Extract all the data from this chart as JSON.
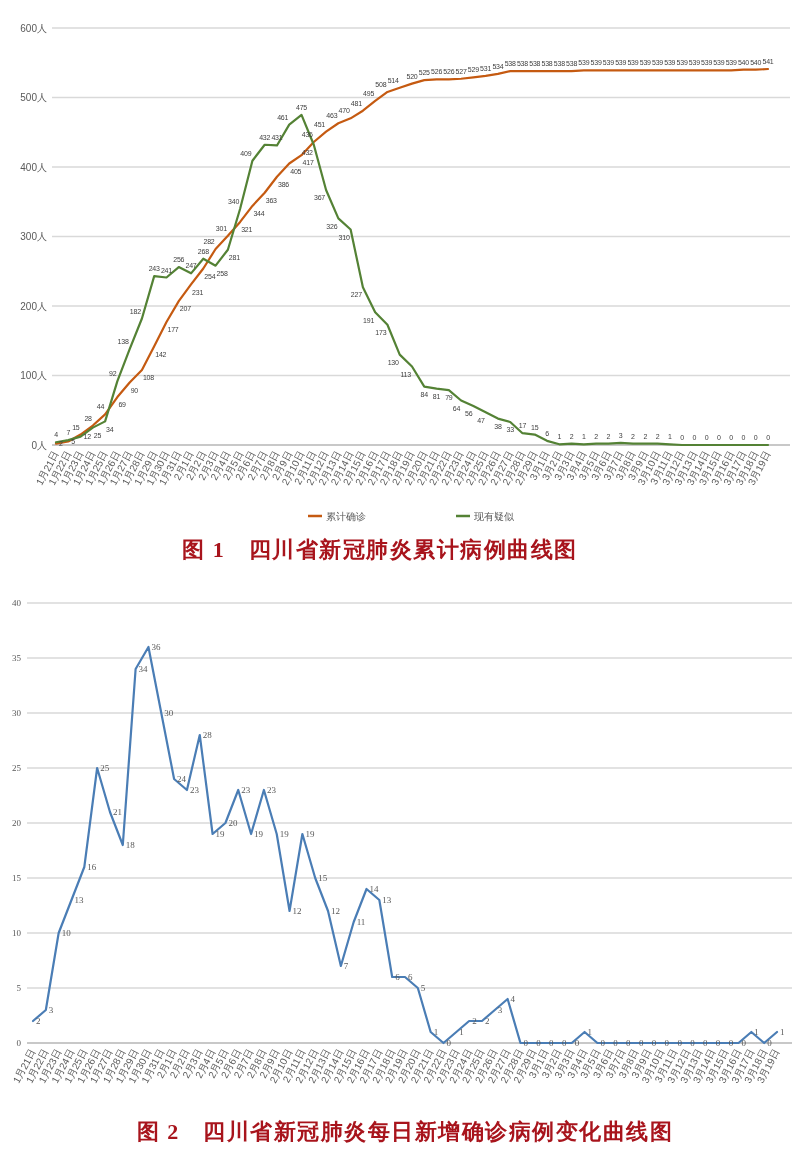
{
  "chart_data": [
    {
      "type": "line",
      "title": "图 1　四川省新冠肺炎累计病例曲线图",
      "categories": [
        "1月21日",
        "1月22日",
        "1月23日",
        "1月24日",
        "1月25日",
        "1月26日",
        "1月27日",
        "1月28日",
        "1月29日",
        "1月30日",
        "1月31日",
        "2月1日",
        "2月2日",
        "2月3日",
        "2月4日",
        "2月5日",
        "2月6日",
        "2月7日",
        "2月8日",
        "2月9日",
        "2月10日",
        "2月11日",
        "2月12日",
        "2月13日",
        "2月14日",
        "2月15日",
        "2月16日",
        "2月17日",
        "2月18日",
        "2月19日",
        "2月20日",
        "2月21日",
        "2月22日",
        "2月23日",
        "2月24日",
        "2月25日",
        "2月26日",
        "2月27日",
        "2月28日",
        "2月29日",
        "3月1日",
        "3月2日",
        "3月3日",
        "3月4日",
        "3月5日",
        "3月6日",
        "3月7日",
        "3月8日",
        "3月9日",
        "3月10日",
        "3月11日",
        "3月12日",
        "3月13日",
        "3月14日",
        "3月15日",
        "3月16日",
        "3月17日",
        "3月18日",
        "3月19日"
      ],
      "series": [
        {
          "name": "累计确诊",
          "color": "#c55a11",
          "values": [
            2,
            5,
            15,
            28,
            44,
            69,
            90,
            108,
            142,
            177,
            207,
            231,
            254,
            282,
            301,
            321,
            344,
            363,
            386,
            405,
            417,
            436,
            451,
            463,
            470,
            481,
            495,
            508,
            514,
            520,
            525,
            526,
            526,
            527,
            529,
            531,
            534,
            538,
            538,
            538,
            538,
            538,
            538,
            539,
            539,
            539,
            539,
            539,
            539,
            539,
            539,
            539,
            539,
            539,
            539,
            539,
            540,
            540,
            541
          ]
        },
        {
          "name": "现有疑似",
          "color": "#548235",
          "values": [
            4,
            7,
            12,
            25,
            34,
            92,
            138,
            182,
            243,
            241,
            256,
            247,
            268,
            258,
            281,
            340,
            409,
            432,
            431,
            461,
            475,
            432,
            367,
            326,
            310,
            227,
            191,
            173,
            130,
            113,
            84,
            81,
            79,
            64,
            56,
            47,
            38,
            33,
            17,
            15,
            6,
            1,
            2,
            1,
            2,
            2,
            3,
            2,
            2,
            2,
            1,
            0,
            0,
            0,
            0,
            0,
            0,
            0,
            0
          ]
        }
      ],
      "ylim": [
        0,
        600
      ],
      "yticks": [
        {
          "value": 0,
          "label": "0人"
        },
        {
          "value": 100,
          "label": "100人"
        },
        {
          "value": 200,
          "label": "200人"
        },
        {
          "value": 300,
          "label": "300人"
        },
        {
          "value": 400,
          "label": "400人"
        },
        {
          "value": 500,
          "label": "500人"
        },
        {
          "value": 600,
          "label": "600人"
        }
      ],
      "grid": "y",
      "legend": "bottom",
      "data_labels": true
    },
    {
      "type": "line",
      "title": "图 2　四川省新冠肺炎每日新增确诊病例变化曲线图",
      "categories": [
        "1月21日",
        "1月22日",
        "1月23日",
        "1月24日",
        "1月25日",
        "1月26日",
        "1月27日",
        "1月28日",
        "1月29日",
        "1月30日",
        "1月31日",
        "2月1日",
        "2月2日",
        "2月3日",
        "2月4日",
        "2月5日",
        "2月6日",
        "2月7日",
        "2月8日",
        "2月9日",
        "2月10日",
        "2月11日",
        "2月12日",
        "2月13日",
        "2月14日",
        "2月15日",
        "2月16日",
        "2月17日",
        "2月18日",
        "2月19日",
        "2月20日",
        "2月21日",
        "2月22日",
        "2月23日",
        "2月24日",
        "2月25日",
        "2月26日",
        "2月27日",
        "2月28日",
        "2月29日",
        "3月1日",
        "3月2日",
        "3月3日",
        "3月4日",
        "3月5日",
        "3月6日",
        "3月7日",
        "3月8日",
        "3月9日",
        "3月10日",
        "3月11日",
        "3月12日",
        "3月13日",
        "3月14日",
        "3月15日",
        "3月16日",
        "3月17日",
        "3月18日",
        "3月19日"
      ],
      "series": [
        {
          "color": "#4a7db5",
          "values": [
            2,
            3,
            10,
            13,
            16,
            25,
            21,
            18,
            34,
            36,
            30,
            24,
            23,
            28,
            19,
            20,
            23,
            19,
            23,
            19,
            12,
            19,
            15,
            12,
            7,
            11,
            14,
            13,
            6,
            6,
            5,
            1,
            0,
            1,
            2,
            2,
            3,
            4,
            0,
            0,
            0,
            0,
            0,
            1,
            0,
            0,
            0,
            0,
            0,
            0,
            0,
            0,
            0,
            0,
            0,
            0,
            1,
            0,
            1
          ]
        }
      ],
      "ylim": [
        0,
        40
      ],
      "yticks": [
        0,
        5,
        10,
        15,
        20,
        25,
        30,
        35,
        40
      ],
      "grid": "y",
      "data_labels": true
    }
  ]
}
